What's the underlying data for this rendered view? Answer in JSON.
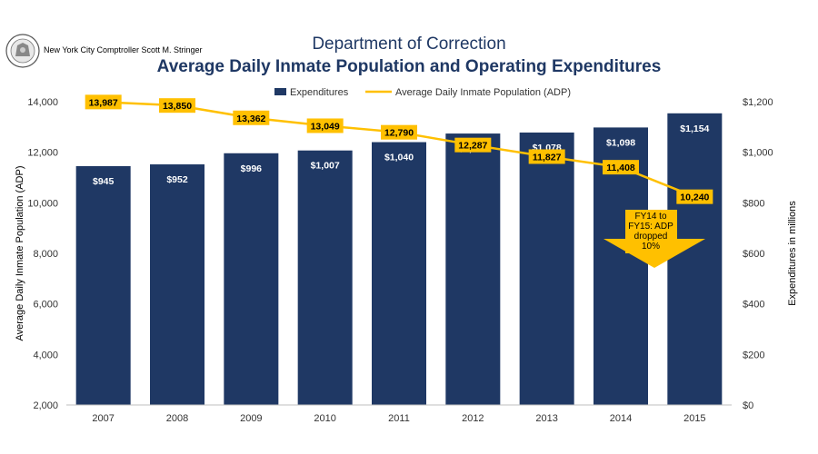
{
  "header": {
    "org": "New York City Comptroller Scott M. Stringer",
    "seal_icon": "nyc-seal-icon"
  },
  "chart_data": {
    "type": "bar",
    "title": "Department of Correction",
    "subtitle": "Average Daily Inmate Population and Operating Expenditures",
    "categories": [
      "2007",
      "2008",
      "2009",
      "2010",
      "2011",
      "2012",
      "2013",
      "2014",
      "2015"
    ],
    "series": [
      {
        "name": "Expenditures",
        "type": "bar",
        "axis": "right",
        "values": [
          945,
          952,
          996,
          1007,
          1040,
          1074,
          1078,
          1098,
          1154
        ],
        "labels": [
          "$945",
          "$952",
          "$996",
          "$1,007",
          "$1,040",
          "$1,074",
          "$1,078",
          "$1,098",
          "$1,154"
        ],
        "color": "#1f3864"
      },
      {
        "name": "Average Daily Inmate Population (ADP)",
        "type": "line",
        "axis": "left",
        "values": [
          13987,
          13850,
          13362,
          13049,
          12790,
          12287,
          11827,
          11408,
          10240
        ],
        "labels": [
          "13,987",
          "13,850",
          "13,362",
          "13,049",
          "12,790",
          "12,287",
          "11,827",
          "11,408",
          "10,240"
        ],
        "color": "#ffc000"
      }
    ],
    "left_axis": {
      "label": "Average Daily  Inmate Population (ADP)",
      "ylim": [
        2000,
        14000
      ],
      "ticks": [
        "2,000",
        "4,000",
        "6,000",
        "8,000",
        "10,000",
        "12,000",
        "14,000"
      ]
    },
    "right_axis": {
      "label": "Expenditures in millions",
      "ylim": [
        0,
        1200
      ],
      "ticks": [
        "$0",
        "$200",
        "$400",
        "$600",
        "$800",
        "$1,000",
        "$1,200"
      ]
    },
    "legend_position": "top-center",
    "grid": false,
    "annotation": {
      "lines": [
        "FY14 to",
        "FY15: ADP",
        "dropped",
        "10%"
      ],
      "color": "#ffc000"
    }
  }
}
